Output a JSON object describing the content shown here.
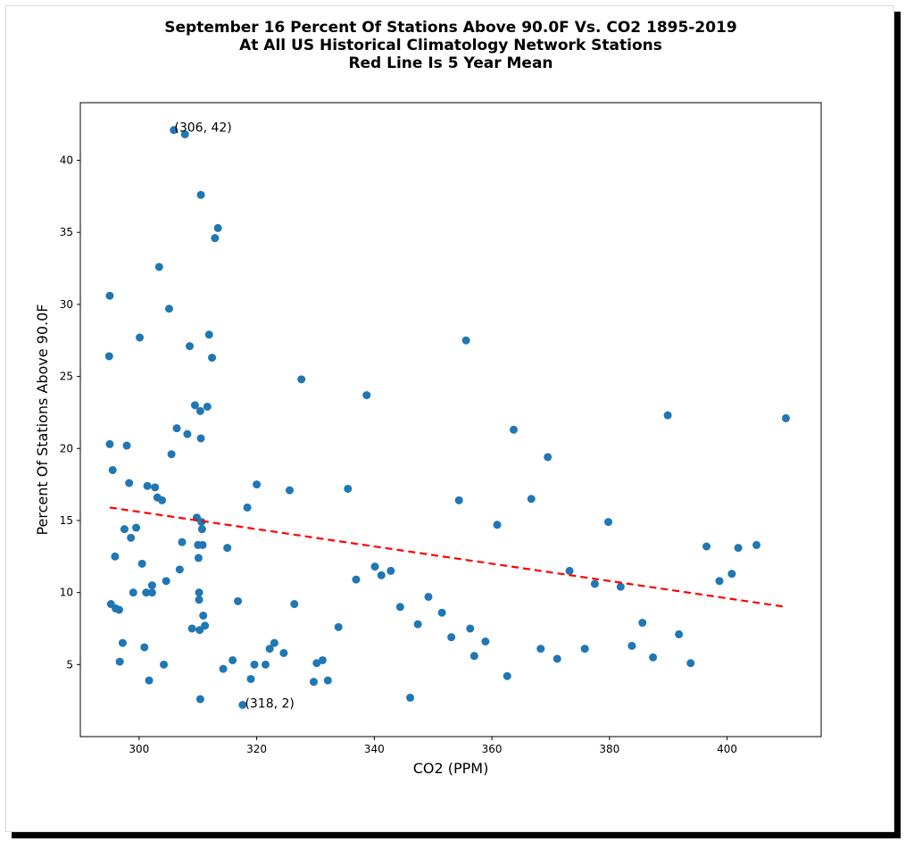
{
  "chart_data": {
    "type": "scatter",
    "title_lines": [
      "September 16 Percent Of Stations Above 90.0F Vs. CO2 1895-2019",
      "At All US Historical Climatology Network Stations",
      "Red Line Is 5 Year Mean"
    ],
    "xlabel": "CO2 (PPM)",
    "ylabel": "Percent Of Stations Above 90.0F",
    "xlim": [
      290,
      416
    ],
    "ylim": [
      0,
      44
    ],
    "xticks": [
      300,
      320,
      340,
      360,
      380,
      400
    ],
    "yticks": [
      5,
      10,
      15,
      20,
      25,
      30,
      35,
      40
    ],
    "grid": false,
    "point_color": "#1f77b4",
    "line_color": "#ff0000",
    "trend_line": {
      "x": [
        295,
        410
      ],
      "y": [
        15.9,
        9.0
      ]
    },
    "annotations": [
      {
        "text": "(306, 42)",
        "x": 306,
        "y": 42
      },
      {
        "text": "(318, 2)",
        "x": 318,
        "y": 2
      }
    ],
    "points": [
      [
        295.0,
        30.6
      ],
      [
        294.9,
        26.4
      ],
      [
        295.0,
        20.3
      ],
      [
        295.5,
        18.5
      ],
      [
        295.2,
        9.2
      ],
      [
        295.9,
        12.5
      ],
      [
        296.0,
        8.9
      ],
      [
        296.6,
        8.8
      ],
      [
        296.7,
        5.2
      ],
      [
        297.2,
        6.5
      ],
      [
        297.5,
        14.4
      ],
      [
        297.9,
        20.2
      ],
      [
        298.3,
        17.6
      ],
      [
        298.6,
        13.8
      ],
      [
        299.0,
        10.0
      ],
      [
        299.5,
        14.5
      ],
      [
        300.1,
        27.7
      ],
      [
        300.5,
        12.0
      ],
      [
        300.9,
        6.2
      ],
      [
        301.2,
        10.0
      ],
      [
        301.4,
        17.4
      ],
      [
        301.7,
        3.9
      ],
      [
        302.2,
        10.5
      ],
      [
        302.2,
        10.0
      ],
      [
        302.7,
        17.3
      ],
      [
        303.1,
        16.6
      ],
      [
        303.4,
        32.6
      ],
      [
        303.9,
        16.4
      ],
      [
        304.2,
        5.0
      ],
      [
        304.6,
        10.8
      ],
      [
        305.1,
        29.7
      ],
      [
        305.5,
        19.6
      ],
      [
        305.9,
        42.1
      ],
      [
        306.4,
        21.4
      ],
      [
        306.9,
        11.6
      ],
      [
        307.3,
        13.5
      ],
      [
        307.8,
        41.8
      ],
      [
        308.2,
        21.0
      ],
      [
        308.6,
        27.1
      ],
      [
        309.0,
        7.5
      ],
      [
        309.5,
        23.0
      ],
      [
        309.8,
        15.2
      ],
      [
        310.0,
        13.3
      ],
      [
        310.1,
        12.4
      ],
      [
        310.2,
        10.0
      ],
      [
        310.2,
        9.5
      ],
      [
        310.3,
        7.4
      ],
      [
        310.4,
        2.6
      ],
      [
        310.4,
        22.6
      ],
      [
        310.5,
        20.7
      ],
      [
        310.5,
        37.6
      ],
      [
        310.6,
        14.9
      ],
      [
        310.7,
        14.4
      ],
      [
        310.8,
        13.3
      ],
      [
        310.9,
        8.4
      ],
      [
        311.2,
        7.7
      ],
      [
        311.6,
        22.9
      ],
      [
        311.9,
        27.9
      ],
      [
        312.4,
        26.3
      ],
      [
        312.9,
        34.6
      ],
      [
        313.4,
        35.3
      ],
      [
        314.3,
        4.7
      ],
      [
        315.0,
        13.1
      ],
      [
        315.9,
        5.3
      ],
      [
        316.8,
        9.4
      ],
      [
        317.6,
        2.2
      ],
      [
        318.4,
        15.9
      ],
      [
        319.0,
        4.0
      ],
      [
        319.6,
        5.0
      ],
      [
        320.0,
        17.5
      ],
      [
        321.5,
        5.0
      ],
      [
        322.2,
        6.1
      ],
      [
        323.0,
        6.5
      ],
      [
        324.6,
        5.8
      ],
      [
        325.6,
        17.1
      ],
      [
        326.4,
        9.2
      ],
      [
        327.6,
        24.8
      ],
      [
        329.7,
        3.8
      ],
      [
        330.2,
        5.1
      ],
      [
        331.2,
        5.3
      ],
      [
        332.1,
        3.9
      ],
      [
        333.9,
        7.6
      ],
      [
        335.5,
        17.2
      ],
      [
        336.9,
        10.9
      ],
      [
        338.7,
        23.7
      ],
      [
        340.1,
        11.8
      ],
      [
        341.2,
        11.2
      ],
      [
        342.8,
        11.5
      ],
      [
        344.4,
        9.0
      ],
      [
        346.1,
        2.7
      ],
      [
        347.4,
        7.8
      ],
      [
        349.2,
        9.7
      ],
      [
        351.5,
        8.6
      ],
      [
        353.1,
        6.9
      ],
      [
        354.4,
        16.4
      ],
      [
        355.6,
        27.5
      ],
      [
        356.3,
        7.5
      ],
      [
        357.0,
        5.6
      ],
      [
        358.9,
        6.6
      ],
      [
        360.9,
        14.7
      ],
      [
        362.6,
        4.2
      ],
      [
        363.7,
        21.3
      ],
      [
        366.7,
        16.5
      ],
      [
        368.3,
        6.1
      ],
      [
        369.5,
        19.4
      ],
      [
        371.1,
        5.4
      ],
      [
        373.2,
        11.5
      ],
      [
        375.8,
        6.1
      ],
      [
        377.5,
        10.6
      ],
      [
        379.8,
        14.9
      ],
      [
        381.9,
        10.4
      ],
      [
        383.8,
        6.3
      ],
      [
        385.6,
        7.9
      ],
      [
        387.4,
        5.5
      ],
      [
        389.9,
        22.3
      ],
      [
        391.8,
        7.1
      ],
      [
        393.8,
        5.1
      ],
      [
        396.5,
        13.2
      ],
      [
        398.7,
        10.8
      ],
      [
        400.8,
        11.3
      ],
      [
        401.9,
        13.1
      ],
      [
        405.0,
        13.3
      ],
      [
        410.0,
        22.1
      ]
    ]
  }
}
